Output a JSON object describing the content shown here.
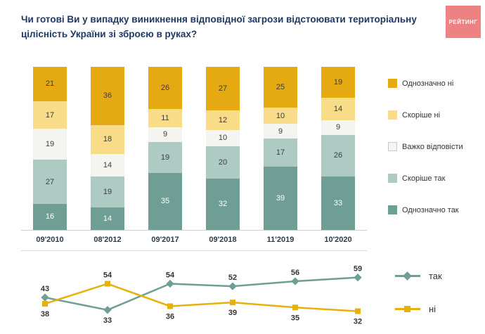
{
  "header": {
    "title": "Чи готові Ви у випадку виникнення відповідної загрози відстоювати територіальну цілісність України зі зброєю в руках?",
    "logo_text": "РЕЙТИНГ"
  },
  "colors": {
    "title_text": "#203864",
    "logo_bg": "#ee8181",
    "axis_line": "#cfcfcf",
    "label_text": "#2e3a48"
  },
  "chart_data": [
    {
      "type": "bar",
      "stacked": true,
      "categories": [
        "09'2010",
        "08'2012",
        "09'2017",
        "09'2018",
        "11'2019",
        "10'2020"
      ],
      "series": [
        {
          "name": "Однозначно так",
          "color": "#6f9e94",
          "text_color": "#ffffff",
          "values": [
            16,
            14,
            35,
            32,
            39,
            33
          ]
        },
        {
          "name": "Скоріше так",
          "color": "#aecbc3",
          "text_color": "#3c3c3c",
          "values": [
            27,
            19,
            19,
            20,
            17,
            26
          ]
        },
        {
          "name": "Важко відповісти",
          "color": "#f4f4f0",
          "text_color": "#3c3c3c",
          "swatch_border": true,
          "values": [
            19,
            14,
            9,
            10,
            9,
            9
          ]
        },
        {
          "name": "Скоріше ні",
          "color": "#f8dc88",
          "text_color": "#3c3c3c",
          "values": [
            17,
            18,
            11,
            12,
            10,
            14
          ]
        },
        {
          "name": "Однозначно ні",
          "color": "#e5a912",
          "text_color": "#3c3c3c",
          "values": [
            21,
            36,
            26,
            27,
            25,
            19
          ]
        }
      ],
      "legend_order_top_to_bottom": [
        "Однозначно ні",
        "Скоріше ні",
        "Важко відповісти",
        "Скоріше так",
        "Однозначно так"
      ],
      "ylim": [
        0,
        100
      ],
      "grid": false,
      "legend_position": "right"
    },
    {
      "type": "line",
      "x": [
        "09'2010",
        "08'2012",
        "09'2017",
        "09'2018",
        "11'2019",
        "10'2020"
      ],
      "series": [
        {
          "name": "так",
          "color": "#6f9e94",
          "marker": "diamond",
          "values": [
            43,
            33,
            54,
            52,
            56,
            59
          ]
        },
        {
          "name": "ні",
          "color": "#e8b00a",
          "marker": "square",
          "values": [
            38,
            54,
            36,
            39,
            35,
            32
          ]
        }
      ],
      "ylim": [
        25,
        65
      ],
      "grid": false,
      "legend_position": "right"
    }
  ]
}
